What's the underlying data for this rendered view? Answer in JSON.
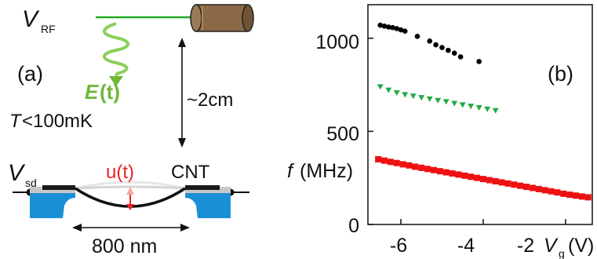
{
  "panel_a": {
    "label": "(a)",
    "vrf_symbol": "V",
    "vrf_subscript": "RF",
    "efield_symbol": "E",
    "efield_arg": "(t)",
    "distance": "~2cm",
    "temperature_symbol": "T",
    "temperature_value": "<100mK",
    "vsd_symbol": "V",
    "vsd_subscript": "sd",
    "displacement": "u(t)",
    "cnt": "CNT",
    "length": "800 nm",
    "colors": {
      "rf_line": "#22aa22",
      "efield": "#8ccf5a",
      "displacement": "#ee2222",
      "electrode": "#1b8fd6",
      "cable": "#8a6a46"
    }
  },
  "panel_b": {
    "label": "(b)",
    "ylabel_symbol": "f",
    "ylabel_unit": "(MHz)",
    "xlabel_symbol": "V",
    "xlabel_subscript": "g",
    "xlabel_unit": "(V)",
    "xticks": [
      "-6",
      "-4",
      "-2"
    ],
    "yticks": [
      "0",
      "500",
      "1000"
    ]
  },
  "chart_data": {
    "type": "scatter",
    "xlim": [
      -6.8,
      -1.35
    ],
    "ylim": [
      0,
      1180
    ],
    "legend": "none",
    "grid": false,
    "series": [
      {
        "color": "#000000",
        "marker": "circle",
        "x": [
          -6.5,
          -6.4,
          -6.3,
          -6.2,
          -6.1,
          -6.0,
          -5.9,
          -5.6,
          -5.3,
          -5.15,
          -5.0,
          -4.85,
          -4.7,
          -4.55,
          -4.1
        ],
        "y": [
          1070,
          1065,
          1060,
          1057,
          1052,
          1045,
          1038,
          1010,
          985,
          965,
          950,
          935,
          920,
          900,
          875
        ]
      },
      {
        "color": "#22aa44",
        "marker": "triangle",
        "x": [
          -6.5,
          -6.3,
          -6.1,
          -5.9,
          -5.7,
          -5.5,
          -5.3,
          -5.1,
          -4.9,
          -4.7,
          -4.5,
          -4.3,
          -4.1,
          -3.9,
          -3.7
        ],
        "y": [
          740,
          722,
          708,
          698,
          690,
          682,
          675,
          667,
          660,
          651,
          643,
          636,
          628,
          620,
          612
        ]
      },
      {
        "color": "#ee1111",
        "marker": "square",
        "x": [
          -6.55,
          -6.4,
          -6.25,
          -6.1,
          -5.95,
          -5.8,
          -5.65,
          -5.5,
          -5.35,
          -5.2,
          -5.05,
          -4.9,
          -4.75,
          -4.6,
          -4.45,
          -4.3,
          -4.15,
          -4.0,
          -3.85,
          -3.7,
          -3.55,
          -3.4,
          -3.25,
          -3.1,
          -2.95,
          -2.8,
          -2.65,
          -2.5,
          -2.35,
          -2.2,
          -2.05,
          -1.9,
          -1.75,
          -1.6,
          -1.45
        ],
        "y": [
          350,
          343,
          336,
          330,
          323,
          317,
          310,
          304,
          298,
          292,
          286,
          280,
          274,
          268,
          262,
          256,
          250,
          244,
          238,
          232,
          226,
          220,
          214,
          208,
          202,
          196,
          190,
          184,
          178,
          172,
          165,
          160,
          155,
          150,
          146
        ]
      }
    ]
  }
}
